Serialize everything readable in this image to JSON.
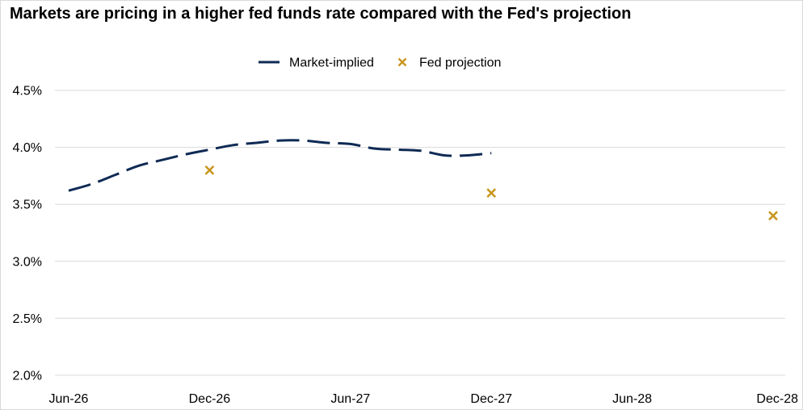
{
  "colors": {
    "market": "#0f2a55",
    "fed": "#c8961e",
    "grid": "#d9d9d9",
    "border": "#d9d9d9"
  },
  "chart_data": {
    "type": "line",
    "title": "Markets are pricing in a higher fed funds rate compared with the Fed's projection",
    "xlabel": "",
    "ylabel": "",
    "x_ticks": [
      "Jun-26",
      "Dec-26",
      "Jun-27",
      "Dec-27",
      "Jun-28",
      "Dec-28"
    ],
    "y_ticks": [
      "2.0%",
      "2.5%",
      "3.0%",
      "3.5%",
      "4.0%",
      "4.5%"
    ],
    "ylim": [
      2.0,
      4.5
    ],
    "xlim": [
      "Jun-26",
      "Dec-28"
    ],
    "grid": "horizontal",
    "legend_position": "top",
    "series": [
      {
        "name": "Market-implied",
        "style": "dashed-line",
        "x": [
          "Jun-26",
          "Jul-26",
          "Aug-26",
          "Sep-26",
          "Oct-26",
          "Nov-26",
          "Dec-26",
          "Jan-27",
          "Feb-27",
          "Mar-27",
          "Apr-27",
          "May-27",
          "Jun-27",
          "Jul-27",
          "Aug-27",
          "Sep-27",
          "Oct-27",
          "Nov-27",
          "Dec-27"
        ],
        "values": [
          3.62,
          3.68,
          3.76,
          3.84,
          3.89,
          3.94,
          3.98,
          4.02,
          4.04,
          4.06,
          4.06,
          4.04,
          4.03,
          3.99,
          3.98,
          3.97,
          3.93,
          3.93,
          3.95
        ]
      },
      {
        "name": "Fed projection",
        "style": "x-marker",
        "x": [
          "Dec-26",
          "Dec-27",
          "Dec-28"
        ],
        "values": [
          3.8,
          3.6,
          3.4
        ]
      }
    ]
  }
}
